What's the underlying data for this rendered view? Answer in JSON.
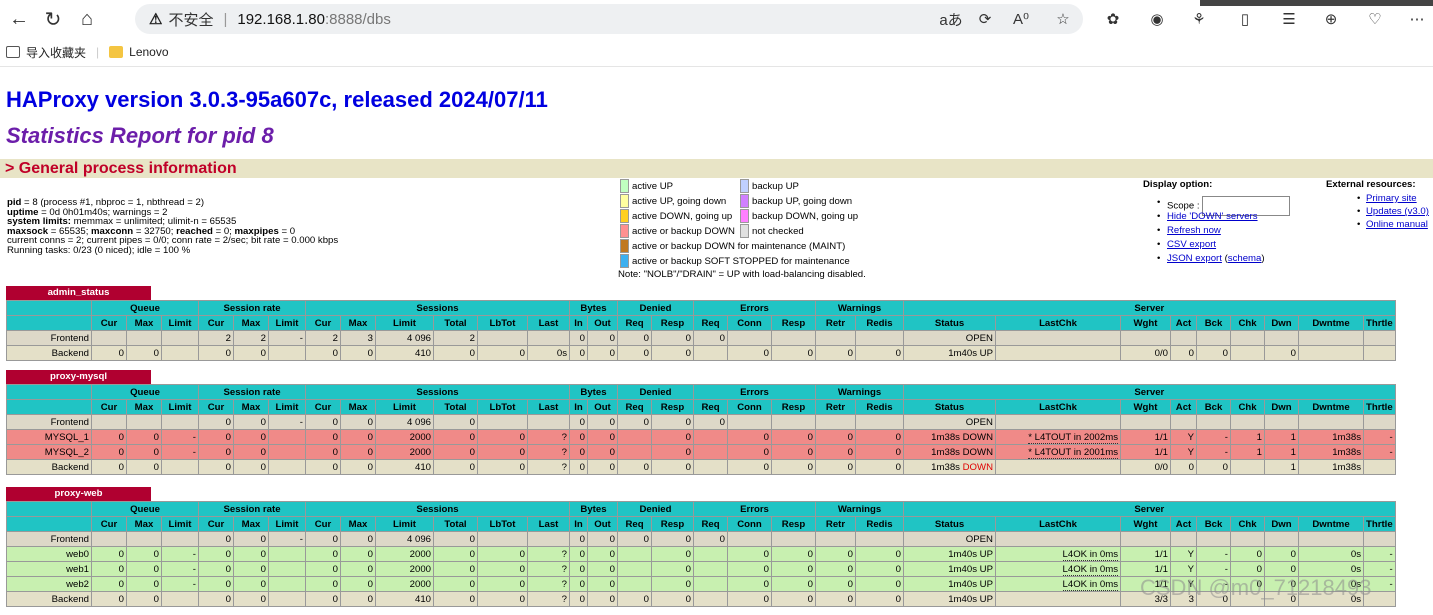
{
  "browser": {
    "security_text": "不安全",
    "separator": "|",
    "host": "192.168.1.80",
    "path": ":8888/dbs",
    "right_icons": [
      "aあ",
      "⟳",
      "A⁰",
      "☆",
      "✿",
      "◉",
      "⚘",
      "▯",
      "☰",
      "⊕",
      "♡",
      "⋯"
    ],
    "bookmarks": [
      {
        "label": "导入收藏夹",
        "icon": "import-icon"
      },
      {
        "label": "Lenovo",
        "icon": "folder-icon"
      }
    ]
  },
  "page": {
    "title": "HAProxy version 3.0.3-95a607c, released 2024/07/11",
    "subtitle": "Statistics Report for pid 8",
    "general_header": "> General process information",
    "proc_lines": [
      [
        {
          "b": "pid"
        },
        {
          "t": " = 8 (process #1, nbproc = 1, nbthread = 2)"
        }
      ],
      [
        {
          "b": "uptime"
        },
        {
          "t": " = 0d 0h01m40s; warnings = 2"
        }
      ],
      [
        {
          "b": "system limits:"
        },
        {
          "t": " memmax = unlimited; ulimit-n = 65535"
        }
      ],
      [
        {
          "b": "maxsock"
        },
        {
          "t": " = 65535; "
        },
        {
          "b": "maxconn"
        },
        {
          "t": " = 32750; "
        },
        {
          "b": "reached"
        },
        {
          "t": " = 0; "
        },
        {
          "b": "maxpipes"
        },
        {
          "t": " = 0"
        }
      ],
      [
        {
          "t": "current conns = 2; current pipes = 0/0; conn rate = 2/sec; bit rate = 0.000 kbps"
        }
      ],
      [
        {
          "t": "Running tasks: 0/23 (0 niced); idle = 100 %"
        }
      ]
    ],
    "legend_left": [
      {
        "label": "active UP",
        "color": "#c0ffc0"
      },
      {
        "label": "active UP, going down",
        "color": "#ffffa0"
      },
      {
        "label": "active DOWN, going up",
        "color": "#ffd020"
      },
      {
        "label": "active or backup DOWN",
        "color": "#ff9090"
      },
      {
        "label": "active or backup DOWN for maintenance (MAINT)",
        "color": "#c07820"
      },
      {
        "label": "active or backup SOFT STOPPED for maintenance",
        "color": "#3cb0f0"
      }
    ],
    "legend_right": [
      {
        "label": "backup UP",
        "color": "#c0d0ff"
      },
      {
        "label": "backup UP, going down",
        "color": "#d080ff"
      },
      {
        "label": "backup DOWN, going up",
        "color": "#ff80ff"
      },
      {
        "label": "not checked",
        "color": "#e0e0e0"
      }
    ],
    "legend_note": "Note: \"NOLB\"/\"DRAIN\" = UP with load-balancing disabled.",
    "display": {
      "header": "Display option:",
      "scope_label": "Scope :",
      "links": [
        "Hide 'DOWN' servers",
        "Refresh now",
        "CSV export"
      ],
      "json_link": "JSON export",
      "json_open": " (",
      "schema_link": "schema",
      "json_close": ")"
    },
    "external": {
      "header": "External resources:",
      "links": [
        "Primary site",
        "Updates (v3.0)",
        "Online manual"
      ]
    },
    "watermark": "CSDN @m0_71218493"
  },
  "tables": [
    {
      "name": "admin_status",
      "rows": [
        {
          "type": "fe",
          "cells": [
            "Frontend",
            "",
            "",
            "",
            "2",
            "2",
            "-",
            "2",
            "3",
            "4 096",
            "2",
            "",
            "",
            "0",
            "0",
            "0",
            "0",
            "0",
            "",
            "",
            "",
            "",
            "OPEN",
            "",
            "",
            "",
            "",
            "",
            "",
            "",
            ""
          ]
        },
        {
          "type": "be",
          "cells": [
            "Backend",
            "0",
            "0",
            "",
            "0",
            "0",
            "",
            "0",
            "0",
            "410",
            "0",
            "0",
            "0s",
            "0",
            "0",
            "0",
            "0",
            "",
            "0",
            "0",
            "0",
            "0",
            "1m40s UP",
            "",
            "0/0",
            "0",
            "0",
            "",
            "0",
            "",
            ""
          ]
        }
      ]
    },
    {
      "name": "proxy-mysql",
      "rows": [
        {
          "type": "fe",
          "cells": [
            "Frontend",
            "",
            "",
            "",
            "0",
            "0",
            "-",
            "0",
            "0",
            "4 096",
            "0",
            "",
            "",
            "0",
            "0",
            "0",
            "0",
            "0",
            "",
            "",
            "",
            "",
            "OPEN",
            "",
            "",
            "",
            "",
            "",
            "",
            "",
            ""
          ]
        },
        {
          "type": "dn",
          "cells": [
            "MYSQL_1",
            "0",
            "0",
            "-",
            "0",
            "0",
            "",
            "0",
            "0",
            "2000",
            "0",
            "0",
            "?",
            "0",
            "0",
            "",
            "0",
            "",
            "0",
            "0",
            "0",
            "0",
            "1m38s DOWN",
            "* L4TOUT in 2002ms",
            "1/1",
            "Y",
            "-",
            "1",
            "1",
            "1m38s",
            "-"
          ]
        },
        {
          "type": "dn",
          "cells": [
            "MYSQL_2",
            "0",
            "0",
            "-",
            "0",
            "0",
            "",
            "0",
            "0",
            "2000",
            "0",
            "0",
            "?",
            "0",
            "0",
            "",
            "0",
            "",
            "0",
            "0",
            "0",
            "0",
            "1m38s DOWN",
            "* L4TOUT in 2001ms",
            "1/1",
            "Y",
            "-",
            "1",
            "1",
            "1m38s",
            "-"
          ]
        },
        {
          "type": "be",
          "cells": [
            "Backend",
            "0",
            "0",
            "",
            "0",
            "0",
            "",
            "0",
            "0",
            "410",
            "0",
            "0",
            "?",
            "0",
            "0",
            "0",
            "0",
            "",
            "0",
            "0",
            "0",
            "0",
            "1m38s DOWN",
            "",
            "0/0",
            "0",
            "0",
            "",
            "1",
            "1m38s",
            ""
          ]
        }
      ]
    },
    {
      "name": "proxy-web",
      "rows": [
        {
          "type": "fe",
          "cells": [
            "Frontend",
            "",
            "",
            "",
            "0",
            "0",
            "-",
            "0",
            "0",
            "4 096",
            "0",
            "",
            "",
            "0",
            "0",
            "0",
            "0",
            "0",
            "",
            "",
            "",
            "",
            "OPEN",
            "",
            "",
            "",
            "",
            "",
            "",
            "",
            ""
          ]
        },
        {
          "type": "up",
          "cells": [
            "web0",
            "0",
            "0",
            "-",
            "0",
            "0",
            "",
            "0",
            "0",
            "2000",
            "0",
            "0",
            "?",
            "0",
            "0",
            "",
            "0",
            "",
            "0",
            "0",
            "0",
            "0",
            "1m40s UP",
            "L4OK in 0ms",
            "1/1",
            "Y",
            "-",
            "0",
            "0",
            "0s",
            "-"
          ]
        },
        {
          "type": "up",
          "cells": [
            "web1",
            "0",
            "0",
            "-",
            "0",
            "0",
            "",
            "0",
            "0",
            "2000",
            "0",
            "0",
            "?",
            "0",
            "0",
            "",
            "0",
            "",
            "0",
            "0",
            "0",
            "0",
            "1m40s UP",
            "L4OK in 0ms",
            "1/1",
            "Y",
            "-",
            "0",
            "0",
            "0s",
            "-"
          ]
        },
        {
          "type": "up",
          "cells": [
            "web2",
            "0",
            "0",
            "-",
            "0",
            "0",
            "",
            "0",
            "0",
            "2000",
            "0",
            "0",
            "?",
            "0",
            "0",
            "",
            "0",
            "",
            "0",
            "0",
            "0",
            "0",
            "1m40s UP",
            "L4OK in 0ms",
            "1/1",
            "Y",
            "-",
            "0",
            "0",
            "0s",
            "-"
          ]
        },
        {
          "type": "be",
          "cells": [
            "Backend",
            "0",
            "0",
            "",
            "0",
            "0",
            "",
            "0",
            "0",
            "410",
            "0",
            "0",
            "?",
            "0",
            "0",
            "0",
            "0",
            "",
            "0",
            "0",
            "0",
            "0",
            "1m40s UP",
            "",
            "3/3",
            "3",
            "0",
            "",
            "0",
            "0s",
            ""
          ]
        }
      ]
    }
  ],
  "table_headers": {
    "groups": [
      {
        "l": "",
        "s": 1
      },
      {
        "l": "Queue",
        "s": 3
      },
      {
        "l": "Session rate",
        "s": 3
      },
      {
        "l": "Sessions",
        "s": 6
      },
      {
        "l": "Bytes",
        "s": 2
      },
      {
        "l": "Denied",
        "s": 2
      },
      {
        "l": "Errors",
        "s": 3
      },
      {
        "l": "Warnings",
        "s": 2
      },
      {
        "l": "Server",
        "s": 9
      }
    ],
    "cols": [
      "",
      "Cur",
      "Max",
      "Limit",
      "Cur",
      "Max",
      "Limit",
      "Cur",
      "Max",
      "Limit",
      "Total",
      "LbTot",
      "Last",
      "In",
      "Out",
      "Req",
      "Resp",
      "Req",
      "Conn",
      "Resp",
      "Retr",
      "Redis",
      "Status",
      "LastChk",
      "Wght",
      "Act",
      "Bck",
      "Chk",
      "Dwn",
      "Dwntme",
      "Thrtle"
    ]
  }
}
